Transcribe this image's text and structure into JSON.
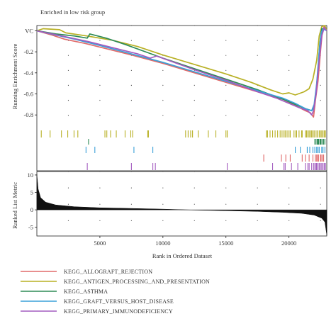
{
  "chart_data": {
    "type": "line",
    "header": "Enriched in low risk group",
    "xlabel": "Rank in Ordered Dataset",
    "es_ylabel": "Running Enrichment Score",
    "metric_ylabel": "Ranked List Metric",
    "x_range": [
      0,
      23000
    ],
    "x_ticks": [
      5000,
      10000,
      15000,
      20000
    ],
    "x_tick_labels": [
      "5000",
      "10000",
      "15000",
      "20000"
    ],
    "es_ylim": [
      -0.92,
      0.05
    ],
    "es_ticks": [
      0.0,
      -0.2,
      -0.4,
      -0.6,
      -0.8
    ],
    "es_tick_labels": [
      "VC",
      "-0.2",
      "-0.4",
      "-0.6",
      "-0.8"
    ],
    "metric_ylim": [
      -7.5,
      11
    ],
    "metric_ticks": [
      10,
      5,
      0,
      -5
    ],
    "metric_tick_labels": [
      "10",
      "5",
      "0",
      "-5"
    ],
    "grid": true,
    "legend_position": "bottom",
    "series": [
      {
        "name": "KEGG_ALLOGRAFT_REJECTION",
        "color": "#e06a6a",
        "es_points": [
          [
            0,
            0
          ],
          [
            1200,
            -0.04
          ],
          [
            2200,
            -0.08
          ],
          [
            3800,
            -0.12
          ],
          [
            5500,
            -0.17
          ],
          [
            7500,
            -0.23
          ],
          [
            10000,
            -0.31
          ],
          [
            12500,
            -0.4
          ],
          [
            15000,
            -0.49
          ],
          [
            17500,
            -0.58
          ],
          [
            19500,
            -0.65
          ],
          [
            20500,
            -0.71
          ],
          [
            21300,
            -0.76
          ],
          [
            21700,
            -0.78
          ],
          [
            21950,
            -0.82
          ],
          [
            22100,
            -0.66
          ],
          [
            22300,
            -0.48
          ],
          [
            22500,
            -0.2
          ],
          [
            22650,
            0.0
          ],
          [
            22800,
            0.04
          ],
          [
            23000,
            0.0
          ]
        ],
        "hits": [
          18000,
          19400,
          19750,
          20100,
          21050,
          21300,
          21600,
          21900,
          22100,
          22200,
          22250,
          22350,
          22500,
          22550,
          22650,
          22750
        ]
      },
      {
        "name": "KEGG_ANTIGEN_PROCESSING_AND_PRESENTATION",
        "color": "#b8b024",
        "es_points": [
          [
            0,
            0
          ],
          [
            500,
            0.02
          ],
          [
            1800,
            0.01
          ],
          [
            2300,
            -0.02
          ],
          [
            4000,
            -0.05
          ],
          [
            6000,
            -0.09
          ],
          [
            8000,
            -0.15
          ],
          [
            10000,
            -0.23
          ],
          [
            12500,
            -0.32
          ],
          [
            15000,
            -0.41
          ],
          [
            17000,
            -0.49
          ],
          [
            18500,
            -0.56
          ],
          [
            19500,
            -0.6
          ],
          [
            20000,
            -0.59
          ],
          [
            20500,
            -0.61
          ],
          [
            21200,
            -0.58
          ],
          [
            21600,
            -0.55
          ],
          [
            21900,
            -0.46
          ],
          [
            22200,
            -0.28
          ],
          [
            22400,
            -0.05
          ],
          [
            22600,
            0.04
          ],
          [
            22850,
            0.05
          ],
          [
            23000,
            0.0
          ]
        ],
        "hits": [
          350,
          1050,
          1950,
          2450,
          2950,
          3250,
          5400,
          5550,
          5850,
          6300,
          7000,
          7450,
          7600,
          8800,
          8850,
          11800,
          12000,
          12200,
          12350,
          12800,
          13600,
          14200,
          15000,
          15100,
          18200,
          18300,
          18500,
          18700,
          18900,
          19100,
          19300,
          19450,
          19600,
          19700,
          19850,
          20000,
          20100,
          20400,
          20550,
          20600,
          20800,
          21000,
          21050,
          21300,
          21400,
          21500,
          21600,
          21700,
          21800,
          21900,
          22000,
          22150,
          22250,
          22400,
          22500,
          22600,
          22700,
          22800,
          22900
        ]
      },
      {
        "name": "KEGG_ASTHMA",
        "color": "#2e8b57",
        "es_points": [
          [
            0,
            0
          ],
          [
            1500,
            -0.03
          ],
          [
            3000,
            -0.05
          ],
          [
            4000,
            -0.07
          ],
          [
            4200,
            -0.03
          ],
          [
            5500,
            -0.07
          ],
          [
            7000,
            -0.13
          ],
          [
            10000,
            -0.26
          ],
          [
            12500,
            -0.36
          ],
          [
            15000,
            -0.46
          ],
          [
            17500,
            -0.56
          ],
          [
            19500,
            -0.65
          ],
          [
            20500,
            -0.7
          ],
          [
            21300,
            -0.74
          ],
          [
            21800,
            -0.76
          ],
          [
            22000,
            -0.72
          ],
          [
            22150,
            -0.58
          ],
          [
            22300,
            -0.38
          ],
          [
            22450,
            -0.12
          ],
          [
            22600,
            0.02
          ],
          [
            22850,
            0.02
          ],
          [
            23000,
            0.0
          ]
        ],
        "hits": [
          4100,
          22050,
          22150,
          22250,
          22300,
          22350,
          22450,
          22500,
          22550,
          22650,
          22750,
          22850
        ]
      },
      {
        "name": "KEGG_GRAFT_VERSUS_HOST_DISEASE",
        "color": "#3aa0d8",
        "es_points": [
          [
            0,
            0
          ],
          [
            1500,
            -0.04
          ],
          [
            3000,
            -0.08
          ],
          [
            5000,
            -0.14
          ],
          [
            7500,
            -0.22
          ],
          [
            10000,
            -0.3
          ],
          [
            12500,
            -0.39
          ],
          [
            15000,
            -0.48
          ],
          [
            17500,
            -0.57
          ],
          [
            19500,
            -0.64
          ],
          [
            20500,
            -0.69
          ],
          [
            21300,
            -0.74
          ],
          [
            21800,
            -0.76
          ],
          [
            22000,
            -0.7
          ],
          [
            22200,
            -0.5
          ],
          [
            22400,
            -0.2
          ],
          [
            22550,
            -0.02
          ],
          [
            22700,
            0.02
          ],
          [
            23000,
            0.0
          ]
        ],
        "hits": [
          3900,
          4600,
          7700,
          9200,
          20500,
          20900,
          21450,
          21650,
          21900,
          22050,
          22200,
          22300,
          22400,
          22600,
          22700,
          22850
        ]
      },
      {
        "name": "KEGG_PRIMARY_IMMUNODEFICIENCY",
        "color": "#a25bbf",
        "es_points": [
          [
            0,
            0
          ],
          [
            2000,
            -0.05
          ],
          [
            4000,
            -0.1
          ],
          [
            6000,
            -0.16
          ],
          [
            8000,
            -0.22
          ],
          [
            9000,
            -0.26
          ],
          [
            9500,
            -0.24
          ],
          [
            12500,
            -0.37
          ],
          [
            15000,
            -0.47
          ],
          [
            17500,
            -0.58
          ],
          [
            19000,
            -0.64
          ],
          [
            20000,
            -0.69
          ],
          [
            20800,
            -0.73
          ],
          [
            21500,
            -0.76
          ],
          [
            21800,
            -0.8
          ],
          [
            21950,
            -0.76
          ],
          [
            22150,
            -0.6
          ],
          [
            22400,
            -0.28
          ],
          [
            22600,
            -0.05
          ],
          [
            22800,
            0.03
          ],
          [
            23000,
            0.0
          ]
        ],
        "hits": [
          4000,
          7500,
          9200,
          9400,
          15100,
          18700,
          19600,
          19700,
          20200,
          20700,
          21300,
          21500,
          21600,
          21800,
          21950,
          22050,
          22150,
          22200,
          22300,
          22400,
          22500,
          22600,
          22700,
          22800,
          22900
        ]
      }
    ],
    "metric_curve": [
      [
        0,
        10.2
      ],
      [
        100,
        6
      ],
      [
        300,
        3.5
      ],
      [
        700,
        2.2
      ],
      [
        1500,
        1.4
      ],
      [
        3000,
        0.9
      ],
      [
        5000,
        0.6
      ],
      [
        7500,
        0.4
      ],
      [
        10000,
        0.2
      ],
      [
        11500,
        0.05
      ],
      [
        12500,
        -0.05
      ],
      [
        15000,
        -0.25
      ],
      [
        17500,
        -0.45
      ],
      [
        19500,
        -0.7
      ],
      [
        21000,
        -1.0
      ],
      [
        22000,
        -1.5
      ],
      [
        22600,
        -2.4
      ],
      [
        22850,
        -3.5
      ],
      [
        23000,
        -7.2
      ]
    ]
  }
}
